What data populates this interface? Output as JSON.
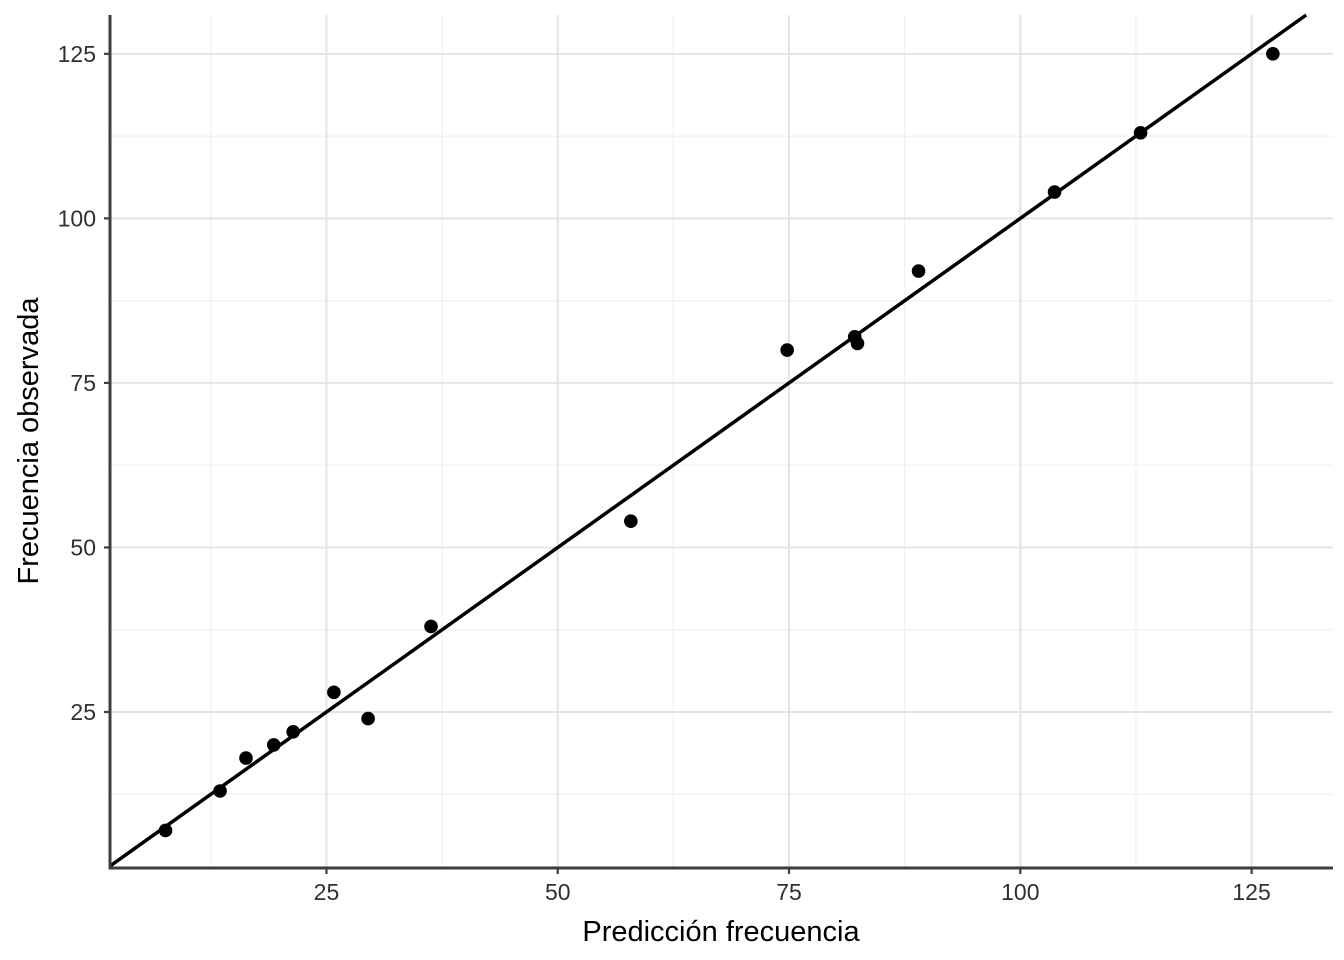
{
  "figure": {
    "background": "#ffffff"
  },
  "chart_data": {
    "type": "scatter",
    "title": "",
    "xlabel": "Predicción frecuencia",
    "ylabel": "Frecuencia observada",
    "xlim": [
      1.6,
      133.8
    ],
    "ylim": [
      1.3,
      130.9
    ],
    "x_ticks": [
      25,
      50,
      75,
      100,
      125
    ],
    "y_ticks": [
      25,
      50,
      75,
      100,
      125
    ],
    "x_minor_ticks": [
      12.5,
      37.5,
      62.5,
      87.5,
      112.5
    ],
    "y_minor_ticks": [
      12.5,
      37.5,
      62.5,
      87.5,
      112.5
    ],
    "grid": "major+minor",
    "legend": "none",
    "points": [
      {
        "x": 7.6,
        "y": 7
      },
      {
        "x": 13.5,
        "y": 13
      },
      {
        "x": 16.3,
        "y": 18
      },
      {
        "x": 19.3,
        "y": 20
      },
      {
        "x": 21.4,
        "y": 22
      },
      {
        "x": 25.8,
        "y": 28
      },
      {
        "x": 29.5,
        "y": 24
      },
      {
        "x": 36.3,
        "y": 38
      },
      {
        "x": 57.9,
        "y": 54
      },
      {
        "x": 74.8,
        "y": 80
      },
      {
        "x": 82.1,
        "y": 82
      },
      {
        "x": 82.4,
        "y": 81
      },
      {
        "x": 89.0,
        "y": 92
      },
      {
        "x": 103.7,
        "y": 104
      },
      {
        "x": 113.0,
        "y": 113
      },
      {
        "x": 127.3,
        "y": 125
      }
    ],
    "reference_line": {
      "type": "identity",
      "slope": 1,
      "intercept": 0
    },
    "style": {
      "point_color": "#000000",
      "point_radius": 6.8,
      "line_color": "#000000",
      "line_width": 3.5,
      "major_grid_color": "#e4e4e4",
      "minor_grid_color": "#f0f0f0",
      "axis_line_color": "#3d3d3d",
      "tick_color": "#3d3d3d",
      "tick_label_color": "#303030",
      "axis_title_color": "#000000"
    }
  }
}
